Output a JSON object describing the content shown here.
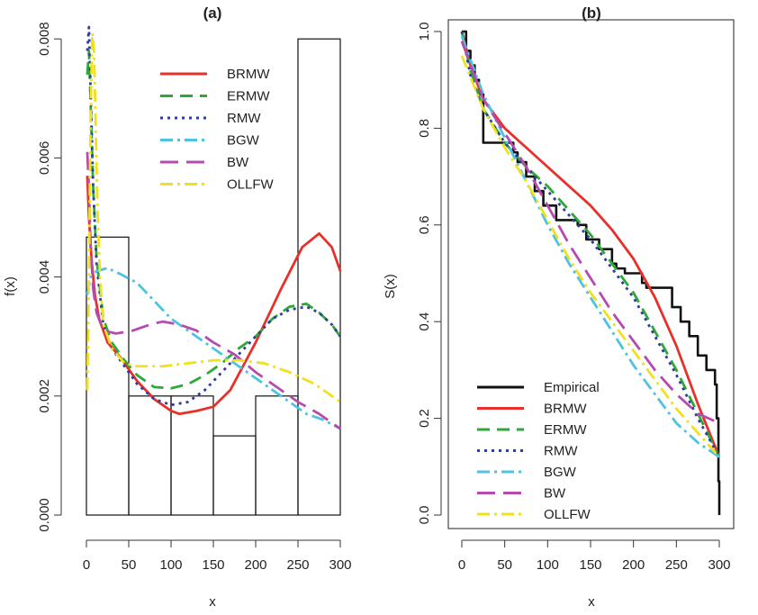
{
  "colors": {
    "BRMW": "#e8302a",
    "ERMW": "#2fa83a",
    "RMW": "#2c3e9e",
    "BGW": "#4cc3e0",
    "BW": "#b64ab0",
    "OLLFW": "#f0e020",
    "Empirical": "#111111"
  },
  "chart_data": [
    {
      "panel": "a",
      "type": "line",
      "title": "(a)",
      "xlabel": "x",
      "ylabel": "f(x)",
      "xlim": [
        0,
        300
      ],
      "ylim": [
        0,
        0.0082
      ],
      "xticks": [
        0,
        50,
        100,
        150,
        200,
        250,
        300
      ],
      "yticks": [
        0.0,
        0.002,
        0.004,
        0.006,
        0.008
      ],
      "ytick_labels": [
        "0.000",
        "0.002",
        "0.004",
        "0.006",
        "0.008"
      ],
      "legend_position": "top-right",
      "histogram": {
        "bins": [
          [
            0,
            50
          ],
          [
            50,
            100
          ],
          [
            100,
            150
          ],
          [
            150,
            200
          ],
          [
            200,
            250
          ],
          [
            250,
            300
          ]
        ],
        "density": [
          0.00467,
          0.002,
          0.002,
          0.00133,
          0.002,
          0.008
        ]
      },
      "series": [
        {
          "name": "BRMW",
          "style": "solid",
          "x": [
            1,
            3,
            6,
            10,
            15,
            25,
            40,
            60,
            80,
            100,
            110,
            130,
            150,
            170,
            200,
            230,
            255,
            275,
            290,
            300
          ],
          "y": [
            0.0057,
            0.005,
            0.0043,
            0.0037,
            0.0033,
            0.0029,
            0.00265,
            0.00225,
            0.00195,
            0.00175,
            0.0017,
            0.00175,
            0.00182,
            0.0021,
            0.0029,
            0.0038,
            0.0045,
            0.00473,
            0.0045,
            0.0041
          ]
        },
        {
          "name": "ERMW",
          "style": "dashed",
          "x": [
            1,
            3,
            5,
            8,
            12,
            20,
            30,
            45,
            60,
            80,
            100,
            120,
            140,
            160,
            180,
            200,
            220,
            240,
            260,
            275,
            290,
            300
          ],
          "y": [
            0.0074,
            0.0078,
            0.0069,
            0.0055,
            0.0043,
            0.0033,
            0.0029,
            0.0026,
            0.00235,
            0.00215,
            0.00213,
            0.0022,
            0.00235,
            0.00255,
            0.0028,
            0.003,
            0.0033,
            0.0035,
            0.00355,
            0.0034,
            0.0032,
            0.003
          ]
        },
        {
          "name": "RMW",
          "style": "dotted",
          "x": [
            1,
            3,
            5,
            8,
            12,
            20,
            30,
            45,
            60,
            80,
            100,
            120,
            140,
            160,
            180,
            200,
            220,
            240,
            260,
            275,
            290,
            300
          ],
          "y": [
            0.0078,
            0.0082,
            0.0071,
            0.0055,
            0.0042,
            0.0032,
            0.0028,
            0.0025,
            0.0022,
            0.00195,
            0.00185,
            0.0019,
            0.0021,
            0.0024,
            0.0027,
            0.003,
            0.0033,
            0.00345,
            0.0035,
            0.0034,
            0.0032,
            0.003
          ]
        },
        {
          "name": "BGW",
          "style": "dashdot",
          "x": [
            1,
            5,
            12,
            25,
            40,
            60,
            80,
            100,
            120,
            140,
            160,
            180,
            200,
            220,
            240,
            260,
            280,
            300
          ],
          "y": [
            0.0037,
            0.004,
            0.0041,
            0.00415,
            0.00405,
            0.0039,
            0.0036,
            0.0033,
            0.0031,
            0.0029,
            0.0027,
            0.0025,
            0.0023,
            0.0021,
            0.0019,
            0.0017,
            0.0016,
            0.00145
          ]
        },
        {
          "name": "BW",
          "style": "longdash",
          "x": [
            1,
            3,
            5,
            8,
            12,
            20,
            35,
            55,
            75,
            90,
            110,
            130,
            150,
            175,
            200,
            225,
            250,
            275,
            300
          ],
          "y": [
            0.0061,
            0.0055,
            0.0045,
            0.0038,
            0.0034,
            0.0031,
            0.00305,
            0.0031,
            0.0032,
            0.00325,
            0.0032,
            0.0031,
            0.0029,
            0.0027,
            0.0024,
            0.00215,
            0.0019,
            0.0017,
            0.00145
          ]
        },
        {
          "name": "OLLFW",
          "style": "dashdot",
          "x": [
            1,
            3,
            5,
            7,
            9,
            11,
            13,
            16,
            20,
            30,
            45,
            60,
            90,
            120,
            150,
            180,
            210,
            240,
            270,
            300
          ],
          "y": [
            0.0021,
            0.004,
            0.0068,
            0.0081,
            0.0078,
            0.0065,
            0.0052,
            0.004,
            0.0032,
            0.0028,
            0.00255,
            0.0025,
            0.0025,
            0.00255,
            0.0026,
            0.0026,
            0.00255,
            0.0024,
            0.0022,
            0.0019
          ]
        }
      ]
    },
    {
      "panel": "b",
      "type": "line",
      "title": "(b)",
      "xlabel": "x",
      "ylabel": "S(x)",
      "xlim": [
        0,
        300
      ],
      "ylim": [
        0,
        1.0
      ],
      "xticks": [
        0,
        50,
        100,
        150,
        200,
        250,
        300
      ],
      "yticks": [
        0.0,
        0.2,
        0.4,
        0.6,
        0.8,
        1.0
      ],
      "ytick_labels": [
        "0.0",
        "0.2",
        "0.4",
        "0.6",
        "0.8",
        "1.0"
      ],
      "legend_position": "bottom-left",
      "series": [
        {
          "name": "Empirical",
          "style": "step",
          "x": [
            0,
            5,
            10,
            15,
            20,
            25,
            60,
            65,
            75,
            85,
            95,
            110,
            135,
            145,
            160,
            175,
            180,
            190,
            210,
            215,
            245,
            255,
            265,
            275,
            285,
            295,
            297,
            299,
            300
          ],
          "y": [
            1.0,
            0.96,
            0.93,
            0.9,
            0.87,
            0.77,
            0.75,
            0.73,
            0.7,
            0.67,
            0.64,
            0.61,
            0.6,
            0.57,
            0.55,
            0.52,
            0.51,
            0.5,
            0.48,
            0.47,
            0.43,
            0.4,
            0.37,
            0.33,
            0.3,
            0.27,
            0.2,
            0.07,
            0.0
          ]
        },
        {
          "name": "BRMW",
          "style": "solid",
          "x": [
            0,
            10,
            25,
            50,
            75,
            100,
            125,
            150,
            175,
            200,
            225,
            250,
            275,
            300
          ],
          "y": [
            1.0,
            0.93,
            0.86,
            0.8,
            0.76,
            0.72,
            0.68,
            0.64,
            0.59,
            0.53,
            0.45,
            0.35,
            0.23,
            0.12
          ]
        },
        {
          "name": "ERMW",
          "style": "dashed",
          "x": [
            0,
            10,
            25,
            50,
            75,
            100,
            125,
            150,
            175,
            200,
            225,
            250,
            275,
            300
          ],
          "y": [
            1.0,
            0.92,
            0.84,
            0.77,
            0.72,
            0.68,
            0.63,
            0.58,
            0.52,
            0.46,
            0.38,
            0.3,
            0.21,
            0.12
          ]
        },
        {
          "name": "RMW",
          "style": "dotted",
          "x": [
            0,
            10,
            25,
            50,
            75,
            100,
            125,
            150,
            175,
            200,
            225,
            250,
            275,
            300
          ],
          "y": [
            1.0,
            0.91,
            0.84,
            0.77,
            0.72,
            0.67,
            0.62,
            0.57,
            0.51,
            0.45,
            0.37,
            0.29,
            0.2,
            0.12
          ]
        },
        {
          "name": "BGW",
          "style": "dashdot",
          "x": [
            0,
            25,
            50,
            75,
            100,
            125,
            150,
            175,
            200,
            225,
            250,
            275,
            300
          ],
          "y": [
            0.99,
            0.87,
            0.78,
            0.69,
            0.6,
            0.52,
            0.45,
            0.38,
            0.31,
            0.25,
            0.19,
            0.15,
            0.12
          ]
        },
        {
          "name": "BW",
          "style": "longdash",
          "x": [
            0,
            25,
            50,
            75,
            100,
            125,
            150,
            175,
            200,
            225,
            250,
            275,
            300
          ],
          "y": [
            0.98,
            0.86,
            0.79,
            0.72,
            0.64,
            0.56,
            0.49,
            0.42,
            0.36,
            0.3,
            0.25,
            0.21,
            0.19
          ]
        },
        {
          "name": "OLLFW",
          "style": "dashdot",
          "x": [
            0,
            25,
            50,
            75,
            100,
            125,
            150,
            175,
            200,
            225,
            250,
            275,
            300
          ],
          "y": [
            0.95,
            0.84,
            0.76,
            0.69,
            0.61,
            0.53,
            0.46,
            0.4,
            0.34,
            0.28,
            0.22,
            0.17,
            0.12
          ]
        }
      ]
    }
  ]
}
